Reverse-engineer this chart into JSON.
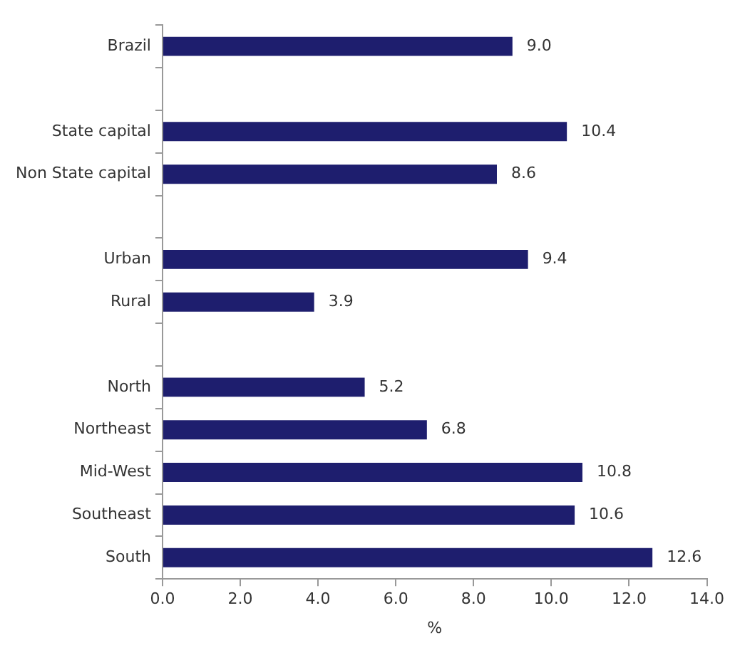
{
  "chart_data": {
    "type": "bar",
    "orientation": "horizontal",
    "xlabel": "%",
    "categories": [
      "Brazil",
      null,
      "State capital",
      "Non State capital",
      null,
      "Urban",
      "Rural",
      null,
      "North",
      "Northeast",
      "Mid-West",
      "Southeast",
      "South"
    ],
    "values": [
      9.0,
      null,
      10.4,
      8.6,
      null,
      9.4,
      3.9,
      null,
      5.2,
      6.8,
      10.8,
      10.6,
      12.6
    ],
    "value_labels": [
      "9.0",
      null,
      "10.4",
      "8.6",
      null,
      "9.4",
      "3.9",
      null,
      "5.2",
      "6.8",
      "10.8",
      "10.6",
      "12.6"
    ],
    "color": "#1e1e6e",
    "xlim": [
      0,
      14
    ],
    "xticks": [
      {
        "value": 0,
        "label": "0.0"
      },
      {
        "value": 2,
        "label": "2.0"
      },
      {
        "value": 4,
        "label": "4.0"
      },
      {
        "value": 6,
        "label": "6.0"
      },
      {
        "value": 8,
        "label": "8.0"
      },
      {
        "value": 10,
        "label": "10.0"
      },
      {
        "value": 12,
        "label": "12.0"
      },
      {
        "value": 14,
        "label": "14.0"
      }
    ],
    "legend": false,
    "grid": false
  }
}
